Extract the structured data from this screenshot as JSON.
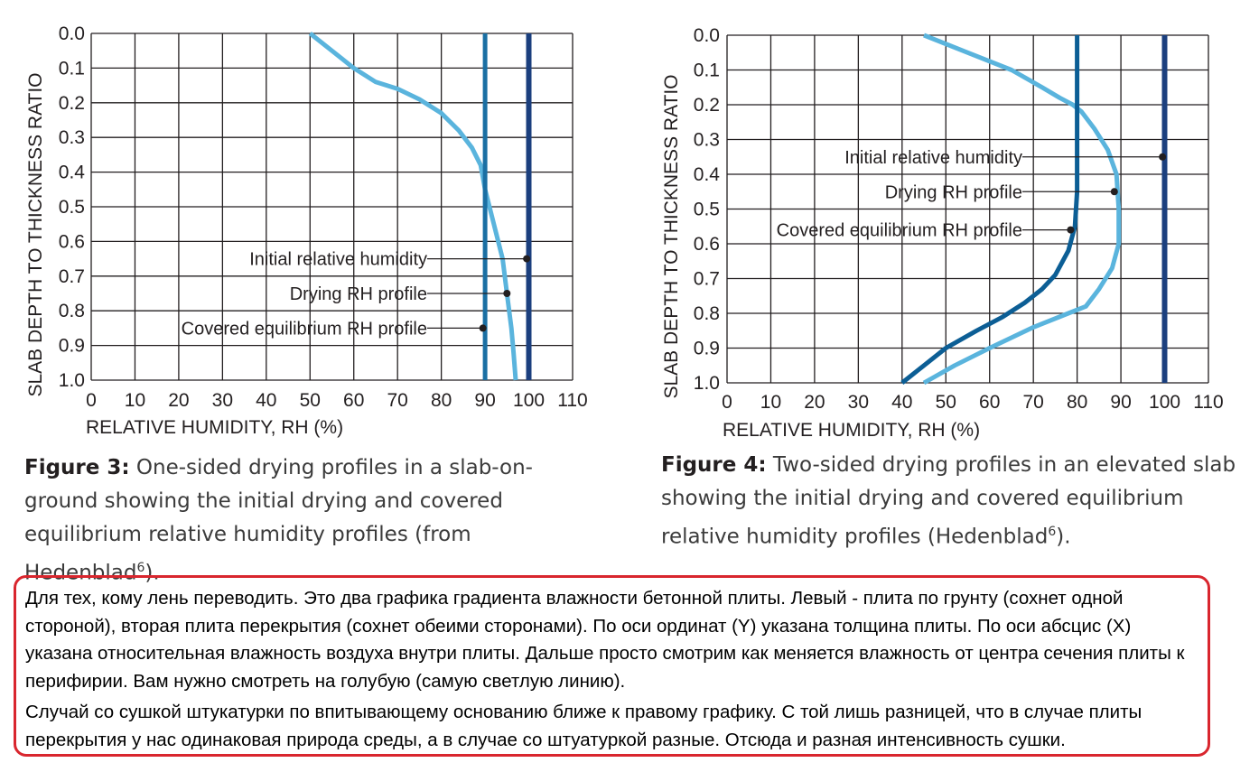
{
  "chart_data": [
    {
      "type": "line",
      "xlabel": "RELATIVE HUMIDITY, RH (%)",
      "ylabel": "SLAB DEPTH TO THICKNESS RATIO",
      "xlim": [
        0,
        110
      ],
      "ylim": [
        0,
        1.0
      ],
      "y_inverted": true,
      "grid": true,
      "x_ticks": [
        "0",
        "10",
        "20",
        "30",
        "40",
        "50",
        "60",
        "70",
        "80",
        "90",
        "100",
        "110"
      ],
      "y_ticks": [
        "0.0",
        "0.1",
        "0.2",
        "0.3",
        "0.4",
        "0.5",
        "0.6",
        "0.7",
        "0.8",
        "0.9",
        "1.0"
      ],
      "series": [
        {
          "name": "Initial relative humidity",
          "color": "#1b3f7e",
          "x": [
            100,
            100
          ],
          "y": [
            0.0,
            1.0
          ]
        },
        {
          "name": "Drying RH profile",
          "color": "#5ab4dd",
          "x": [
            50,
            55,
            60,
            65,
            70,
            75,
            80,
            84,
            87,
            89,
            90,
            92,
            94,
            95,
            96,
            96.5,
            97
          ],
          "y": [
            0.0,
            0.05,
            0.1,
            0.14,
            0.16,
            0.19,
            0.23,
            0.28,
            0.33,
            0.38,
            0.45,
            0.55,
            0.65,
            0.75,
            0.85,
            0.92,
            1.0
          ]
        },
        {
          "name": "Covered equilibrium RH profile",
          "color": "#1a6fa3",
          "x": [
            90,
            90
          ],
          "y": [
            0.0,
            1.0
          ]
        }
      ],
      "annotations": [
        {
          "text": "Initial relative humidity",
          "x": 99.5,
          "y": 0.65
        },
        {
          "text": "Drying RH profile",
          "x": 95,
          "y": 0.75
        },
        {
          "text": "Covered equilibrium RH profile",
          "x": 89.5,
          "y": 0.85
        }
      ]
    },
    {
      "type": "line",
      "xlabel": "RELATIVE HUMIDITY, RH (%)",
      "ylabel": "SLAB DEPTH TO THICKNESS RATIO",
      "xlim": [
        0,
        110
      ],
      "ylim": [
        0,
        1.0
      ],
      "y_inverted": true,
      "grid": true,
      "x_ticks": [
        "0",
        "10",
        "20",
        "30",
        "40",
        "50",
        "60",
        "70",
        "80",
        "90",
        "100",
        "110"
      ],
      "y_ticks": [
        "0.0",
        "0.1",
        "0.2",
        "0.3",
        "0.4",
        "0.5",
        "0.6",
        "0.7",
        "0.8",
        "0.9",
        "1.0"
      ],
      "series": [
        {
          "name": "Initial relative humidity",
          "color": "#1b3f7e",
          "x": [
            100,
            100
          ],
          "y": [
            0.0,
            1.0
          ]
        },
        {
          "name": "Drying RH profile",
          "color": "#5ab4dd",
          "x": [
            45,
            55,
            65,
            72,
            76,
            79,
            81,
            84,
            87,
            89,
            89.5,
            89.5,
            88,
            85,
            82,
            78,
            70,
            60,
            52,
            45
          ],
          "y": [
            0.0,
            0.05,
            0.1,
            0.15,
            0.18,
            0.2,
            0.22,
            0.27,
            0.33,
            0.4,
            0.5,
            0.6,
            0.67,
            0.73,
            0.78,
            0.8,
            0.84,
            0.9,
            0.95,
            1.0
          ]
        },
        {
          "name": "Covered equilibrium RH profile",
          "color": "#0c5e95",
          "x": [
            80,
            80,
            79.5,
            78,
            75,
            72,
            68,
            63,
            57,
            50,
            45,
            40
          ],
          "y": [
            0.0,
            0.45,
            0.55,
            0.62,
            0.69,
            0.73,
            0.77,
            0.81,
            0.85,
            0.9,
            0.95,
            1.0
          ]
        }
      ],
      "annotations": [
        {
          "text": "Initial relative humidity",
          "x": 99.5,
          "y": 0.35
        },
        {
          "text": "Drying RH profile",
          "x": 88.5,
          "y": 0.45
        },
        {
          "text": "Covered equilibrium RH profile",
          "x": 78.5,
          "y": 0.56
        }
      ]
    }
  ],
  "captions": [
    {
      "label": "Figure 3:",
      "text": " One-sided drying profiles in a slab-on-ground showing the initial drying and covered equilibrium relative humidity profiles (from Hedenblad",
      "sup": "6",
      "tail": ")."
    },
    {
      "label": "Figure 4:",
      "text": " Two-sided drying profiles in an elevated slab showing the initial drying and covered equilibrium relative humidity profiles (Hedenblad",
      "sup": "6",
      "tail": ")."
    }
  ],
  "note": {
    "paragraph_1": "Для тех, кому лень переводить. Это два графика градиента влажности бетонной плиты. Левый - плита по грунту (сохнет одной стороной), вторая плита перекрытия (сохнет обеими сторонами). По оси ординат (Y) указана толщина плиты. По оси абсцис (X) указана относительная влажность воздуха внутри плиты. Дальше просто смотрим как меняется влажность от центра сечения плиты к перифирии. Вам нужно смотреть на голубую (самую светлую линию).",
    "paragraph_2": "Случай со сушкой штукатурки по впитывающему основанию ближе к правому графику. С той лишь разницей, что в случае плиты перекрытия у нас одинаковая природа среды, а в случае со штуатуркой разные. Отсюда и разная интенсивность сушки."
  }
}
